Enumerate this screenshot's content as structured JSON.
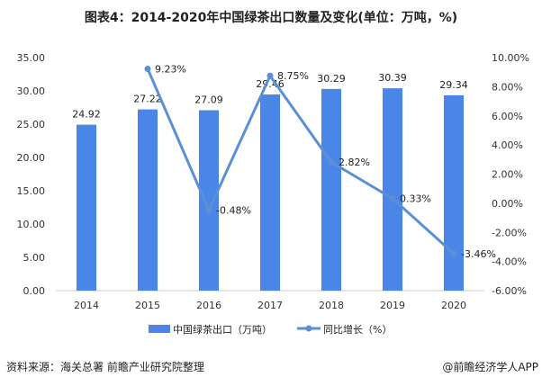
{
  "title": "图表4：2014-2020年中国绿茶出口数量及变化(单位：万吨，%)",
  "source": "资料来源：海关总署 前瞻产业研究院整理",
  "credit": "@前瞻经济学人APP",
  "chart_data": {
    "type": "bar+line",
    "categories": [
      "2014",
      "2015",
      "2016",
      "2017",
      "2018",
      "2019",
      "2020"
    ],
    "series": [
      {
        "name": "中国绿茶出口（万吨）",
        "type": "bar",
        "axis": "left",
        "color": "#4a86e8",
        "values": [
          24.92,
          27.22,
          27.09,
          29.46,
          30.29,
          30.39,
          29.34
        ],
        "labels": [
          "24.92",
          "27.22",
          "27.09",
          "29.46",
          "30.29",
          "30.39",
          "29.34"
        ]
      },
      {
        "name": "同比增长（%）",
        "type": "line",
        "axis": "right",
        "color": "#5b8fd6",
        "values": [
          null,
          9.23,
          -0.48,
          8.75,
          2.82,
          0.33,
          -3.46
        ],
        "labels": [
          "",
          "9.23%",
          "-0.48%",
          "8.75%",
          "2.82%",
          "0.33%",
          "-3.46%"
        ]
      }
    ],
    "left_axis": {
      "ylim": [
        0,
        35
      ],
      "ticks": [
        "0.00",
        "5.00",
        "10.00",
        "15.00",
        "20.00",
        "25.00",
        "30.00",
        "35.00"
      ]
    },
    "right_axis": {
      "ylim": [
        -6,
        10
      ],
      "ticks": [
        "-6.00%",
        "-4.00%",
        "-2.00%",
        "0.00%",
        "2.00%",
        "4.00%",
        "6.00%",
        "8.00%",
        "10.00%"
      ]
    },
    "grid": false,
    "legend": "bottom"
  }
}
